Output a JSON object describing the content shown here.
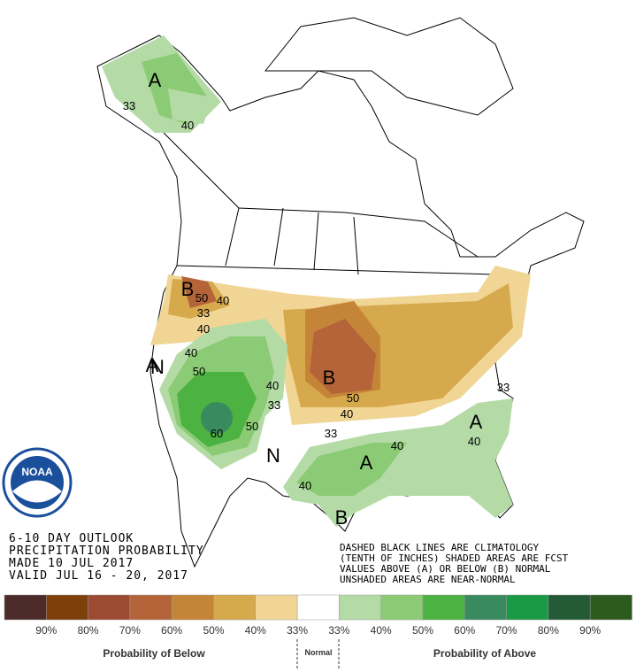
{
  "header": {
    "lines": [
      "6-10 DAY OUTLOOK",
      "PRECIPITATION PROBABILITY",
      "MADE  10 JUL 2017",
      "VALID  JUL 16 - 20, 2017"
    ]
  },
  "note": {
    "lines": [
      "DASHED BLACK LINES ARE CLIMATOLOGY",
      "(TENTH OF INCHES) SHADED AREAS ARE FCST",
      "VALUES ABOVE (A) OR BELOW (B) NORMAL",
      "UNSHADED AREAS ARE NEAR-NORMAL"
    ]
  },
  "logo": {
    "text": "NOAA"
  },
  "map_labels": [
    "A",
    "33",
    "40",
    "B",
    "50",
    "40",
    "33",
    "40",
    "50",
    "40",
    "A",
    "60",
    "50",
    "N",
    "33",
    "40",
    "B",
    "50",
    "40",
    "33",
    "N",
    "A",
    "40",
    "40",
    "A",
    "33",
    "40",
    "B"
  ],
  "legend": {
    "colors": [
      "#4d2b2b",
      "#7e3f0a",
      "#9c4a32",
      "#b5643a",
      "#c58538",
      "#d7a94d",
      "#f0d595",
      "#ffffff",
      "#b4dba6",
      "#8ccb75",
      "#4cb241",
      "#3a8a60",
      "#1a9a45",
      "#245a36",
      "#2d5a1f"
    ],
    "labels": [
      "90%",
      "80%",
      "70%",
      "60%",
      "50%",
      "40%",
      "33%",
      "33%",
      "40%",
      "50%",
      "60%",
      "70%",
      "80%",
      "90%"
    ],
    "below": "Probability of Below",
    "normal": "Normal",
    "above": "Probability of Above"
  }
}
